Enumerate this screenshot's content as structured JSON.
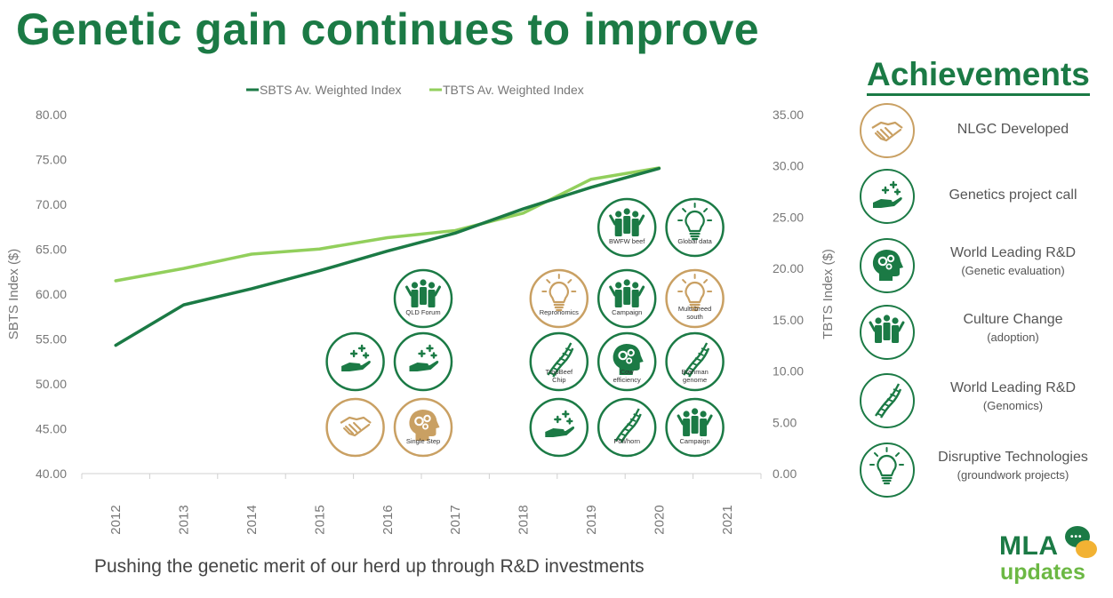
{
  "page": {
    "title": "Genetic gain continues to improve",
    "footer": "Pushing the genetic merit of our herd up through R&D investments"
  },
  "colors": {
    "brand_green": "#1b7a45",
    "light_green": "#92cf5c",
    "gold": "#c9a063",
    "logo_light_green": "#6cb844",
    "logo_yellow": "#f2b233"
  },
  "chart_data": {
    "type": "line",
    "categories": [
      "2012",
      "2013",
      "2014",
      "2015",
      "2016",
      "2017",
      "2018",
      "2019",
      "2020",
      "2021"
    ],
    "series": [
      {
        "name": "SBTS Av. Weighted Index",
        "axis": "left",
        "color": "#1b7a45",
        "values": [
          54.3,
          58.8,
          60.6,
          62.6,
          64.8,
          66.8,
          69.5,
          71.9,
          74.0,
          null
        ]
      },
      {
        "name": "TBTS Av. Weighted Index",
        "axis": "right",
        "color": "#92cf5c",
        "values": [
          18.8,
          20.0,
          21.4,
          21.9,
          23.0,
          23.7,
          25.4,
          28.7,
          29.8,
          null
        ]
      }
    ],
    "ylabel_left": "SBTS Index ($)",
    "ylabel_right": "TBTS Index ($)",
    "ylim_left": [
      40,
      80
    ],
    "ylim_right": [
      0,
      35
    ],
    "yticks_left": [
      "40.00",
      "45.00",
      "50.00",
      "55.00",
      "60.00",
      "65.00",
      "70.00",
      "75.00",
      "80.00"
    ],
    "yticks_right": [
      "0.00",
      "5.00",
      "10.00",
      "15.00",
      "20.00",
      "25.00",
      "30.00",
      "35.00"
    ],
    "legend_position": "top",
    "grid": false,
    "annotations": [
      {
        "year": "2015",
        "icon": "handshake-icon",
        "tone": "gold",
        "label": ""
      },
      {
        "year": "2015",
        "icon": "hand-sparkle-icon",
        "tone": "green",
        "label": ""
      },
      {
        "year": "2016",
        "icon": "head-gears-icon",
        "tone": "gold",
        "label": "Single Step"
      },
      {
        "year": "2016",
        "icon": "hand-sparkle-icon",
        "tone": "green",
        "label": ""
      },
      {
        "year": "2016",
        "icon": "people-icon",
        "tone": "green",
        "label": "QLD Forum"
      },
      {
        "year": "2018",
        "icon": "hand-sparkle-icon",
        "tone": "green",
        "label": ""
      },
      {
        "year": "2018",
        "icon": "dna-icon",
        "tone": "green",
        "label": "TropBeef Chip"
      },
      {
        "year": "2018",
        "icon": "lightbulb-icon",
        "tone": "gold",
        "label": "Repronomics"
      },
      {
        "year": "2019",
        "icon": "dna-icon",
        "tone": "green",
        "label": "Poll/horn"
      },
      {
        "year": "2019",
        "icon": "head-gears-icon",
        "tone": "green",
        "label": "Cow efficiency"
      },
      {
        "year": "2019",
        "icon": "people-icon",
        "tone": "green",
        "label": "Campaign"
      },
      {
        "year": "2019",
        "icon": "people-icon",
        "tone": "green",
        "label": "BWFW beef"
      },
      {
        "year": "2020",
        "icon": "people-icon",
        "tone": "green",
        "label": "Campaign"
      },
      {
        "year": "2020",
        "icon": "dna-icon",
        "tone": "green",
        "label": "Brahman genome"
      },
      {
        "year": "2020",
        "icon": "lightbulb-icon",
        "tone": "gold",
        "label": "Multi-breed south"
      },
      {
        "year": "2020",
        "icon": "lightbulb-icon",
        "tone": "green",
        "label": "Global data"
      }
    ]
  },
  "achievements": {
    "title": "Achievements",
    "items": [
      {
        "label": "NLGC Developed",
        "sub": "",
        "icon": "handshake-icon",
        "tone": "gold"
      },
      {
        "label": "Genetics project call",
        "sub": "",
        "icon": "hand-sparkle-icon",
        "tone": "green"
      },
      {
        "label": "World Leading R&D",
        "sub": "(Genetic evaluation)",
        "icon": "head-gears-icon",
        "tone": "green"
      },
      {
        "label": "Culture Change",
        "sub": "(adoption)",
        "icon": "people-icon",
        "tone": "green"
      },
      {
        "label": "World Leading R&D",
        "sub": "(Genomics)",
        "icon": "dna-icon",
        "tone": "green"
      },
      {
        "label": "Disruptive Technologies",
        "sub": "(groundwork projects)",
        "icon": "lightbulb-icon",
        "tone": "green"
      }
    ]
  },
  "logo": {
    "brand": "MLA",
    "tagline": "updates",
    "bubble_text": "•••"
  }
}
